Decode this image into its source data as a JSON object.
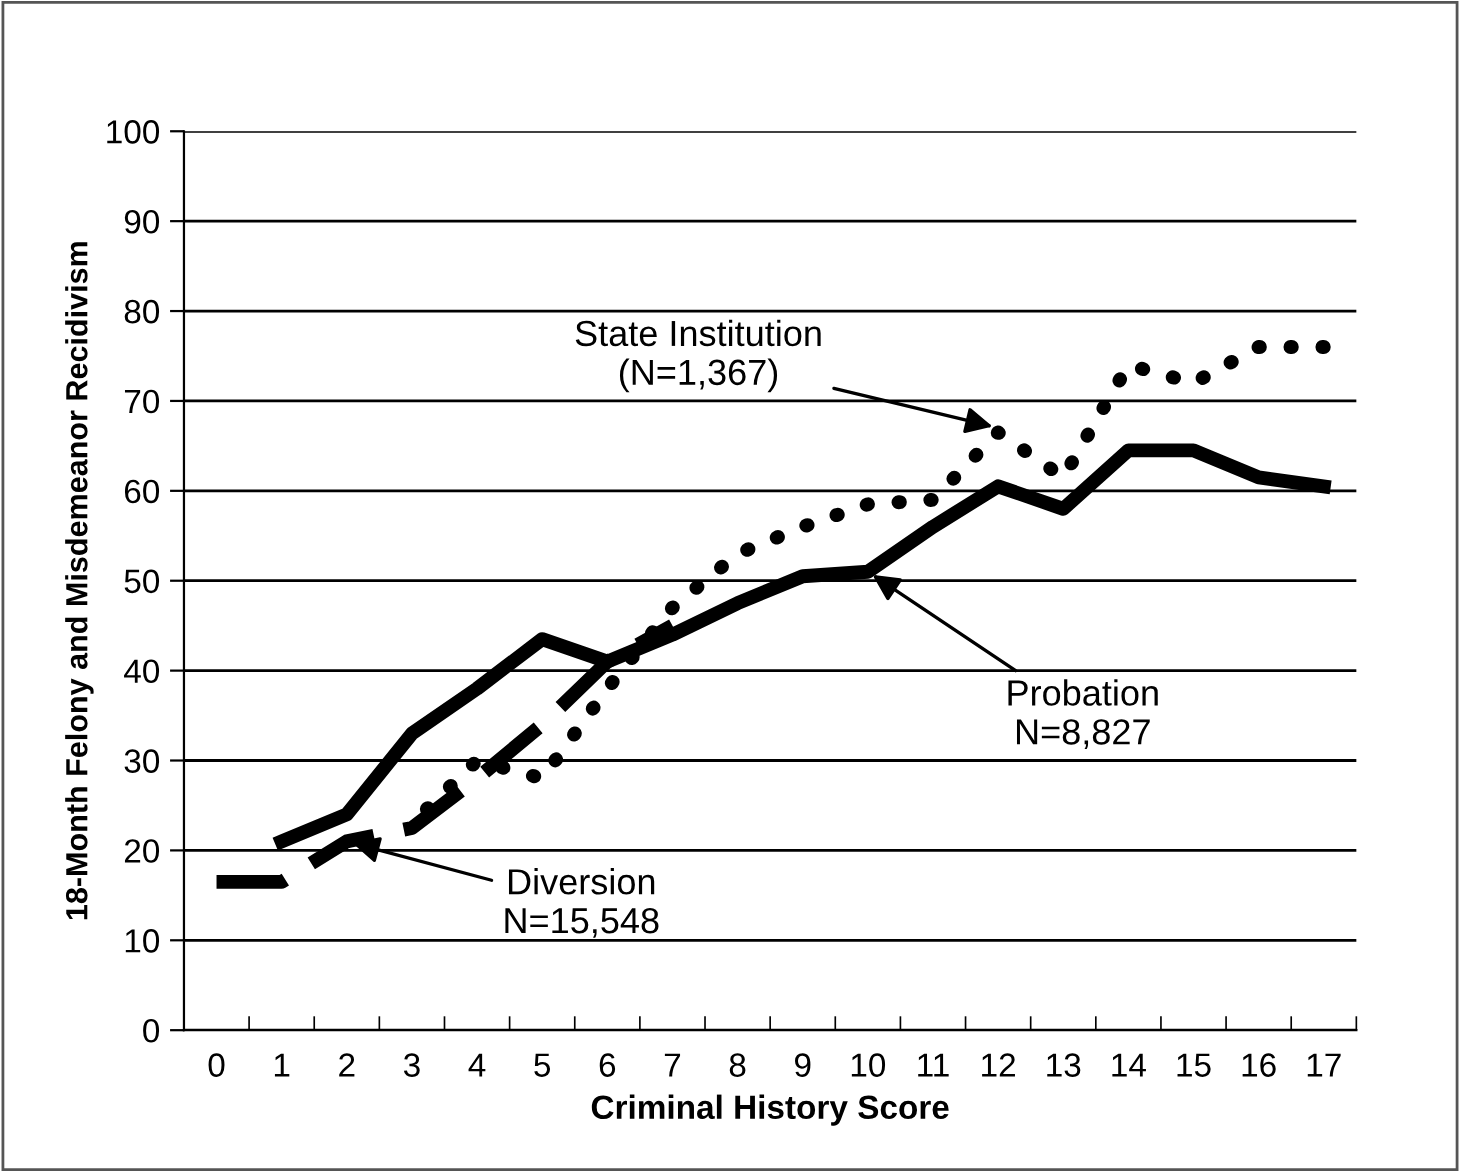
{
  "chart_data": {
    "type": "line",
    "xlabel": "Criminal History Score",
    "ylabel": "18-Month Felony and Misdemeanor Recidivism",
    "categories": [
      "0",
      "1",
      "2",
      "3",
      "4",
      "5",
      "6",
      "7",
      "8",
      "9",
      "10",
      "11",
      "12",
      "13",
      "14",
      "15",
      "16",
      "17"
    ],
    "ylim": [
      0,
      100
    ],
    "yticks": [
      0,
      10,
      20,
      30,
      40,
      50,
      60,
      70,
      80,
      90,
      100
    ],
    "grid": "y",
    "legend": false,
    "marker": "none",
    "series": [
      {
        "color": "#000000",
        "line_style": "solid",
        "values": [
          null,
          21,
          24,
          33,
          38,
          43.5,
          41,
          44,
          47.5,
          50.5,
          51,
          56,
          60.5,
          58,
          64.5,
          64.5,
          61.5,
          60.5
        ]
      },
      {
        "color": "#000000",
        "line_style": "dashed",
        "values": [
          16.5,
          16.5,
          21,
          22.5,
          28,
          34,
          41,
          45,
          null,
          null,
          null,
          null,
          null,
          null,
          null,
          null,
          null,
          null
        ]
      },
      {
        "color": "#000000",
        "line_style": "dotted",
        "values": [
          null,
          null,
          null,
          23,
          30,
          28,
          38,
          47,
          53,
          56,
          58.5,
          59,
          66.5,
          61.5,
          74,
          72,
          76,
          76
        ]
      }
    ],
    "annotations": [
      {
        "text": "State Institution\n(N=1,367)",
        "x": "12",
        "y": 67
      },
      {
        "text": "Probation\nN=8,827",
        "x": "10",
        "y": 51
      },
      {
        "text": "Diversion\nN=15,548",
        "x": "2",
        "y": 21
      }
    ]
  }
}
